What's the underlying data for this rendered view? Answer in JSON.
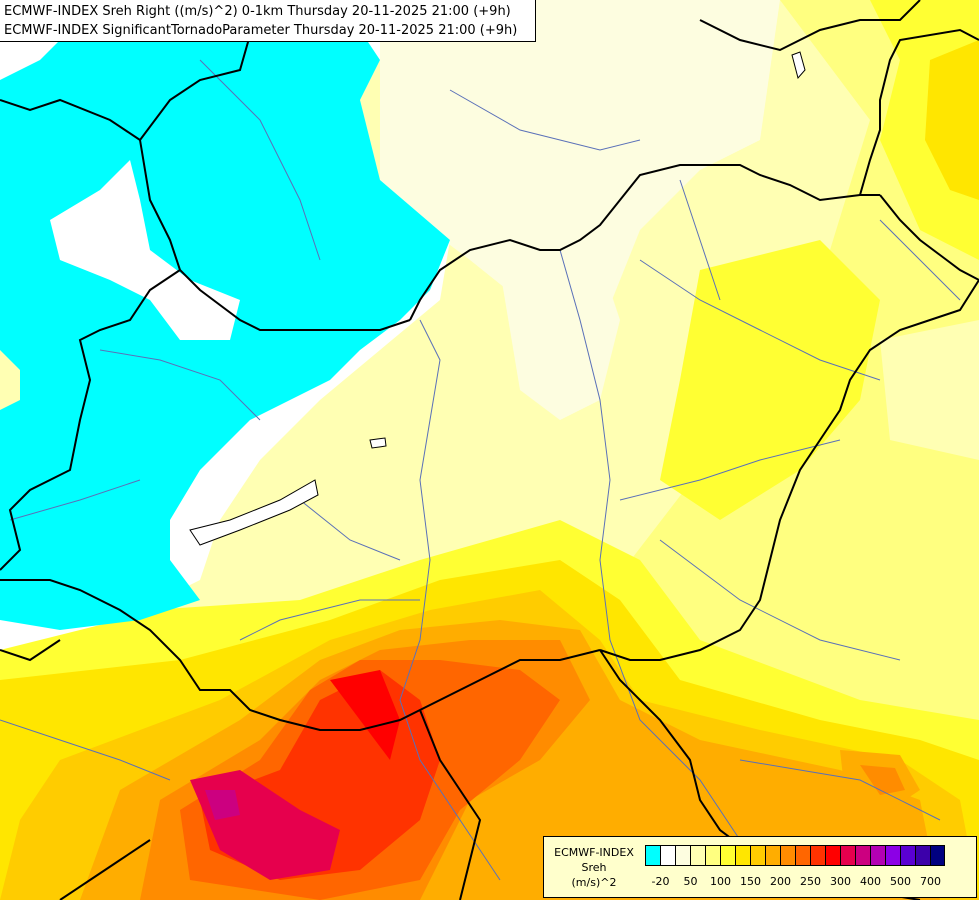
{
  "title": {
    "line1": "ECMWF-INDEX Sreh Right ((m/s)^2) 0-1km Thursday 20-11-2025 21:00 (+9h)",
    "line2": "ECMWF-INDEX SignificantTornadoParameter Thursday 20-11-2025 21:00 (+9h)"
  },
  "legend": {
    "label_line1": "ECMWF-INDEX",
    "label_line2": "Sreh",
    "label_line3": "(m/s)^2",
    "colors": [
      "#00ffff",
      "#ffffff",
      "#fdfde0",
      "#ffffb3",
      "#ffff80",
      "#ffff33",
      "#ffe600",
      "#ffcc00",
      "#ffad00",
      "#ff8c00",
      "#ff6600",
      "#ff3300",
      "#ff0000",
      "#e6004d",
      "#cc0080",
      "#b300b3",
      "#8c00e6",
      "#5a00d2",
      "#3c00aa",
      "#000080"
    ],
    "ticks": [
      {
        "label": "-20",
        "index": 1
      },
      {
        "label": "50",
        "index": 3
      },
      {
        "label": "100",
        "index": 5
      },
      {
        "label": "150",
        "index": 7
      },
      {
        "label": "200",
        "index": 9
      },
      {
        "label": "250",
        "index": 11
      },
      {
        "label": "300",
        "index": 13
      },
      {
        "label": "400",
        "index": 15
      },
      {
        "label": "500",
        "index": 17
      },
      {
        "label": "700",
        "index": 19
      }
    ]
  }
}
